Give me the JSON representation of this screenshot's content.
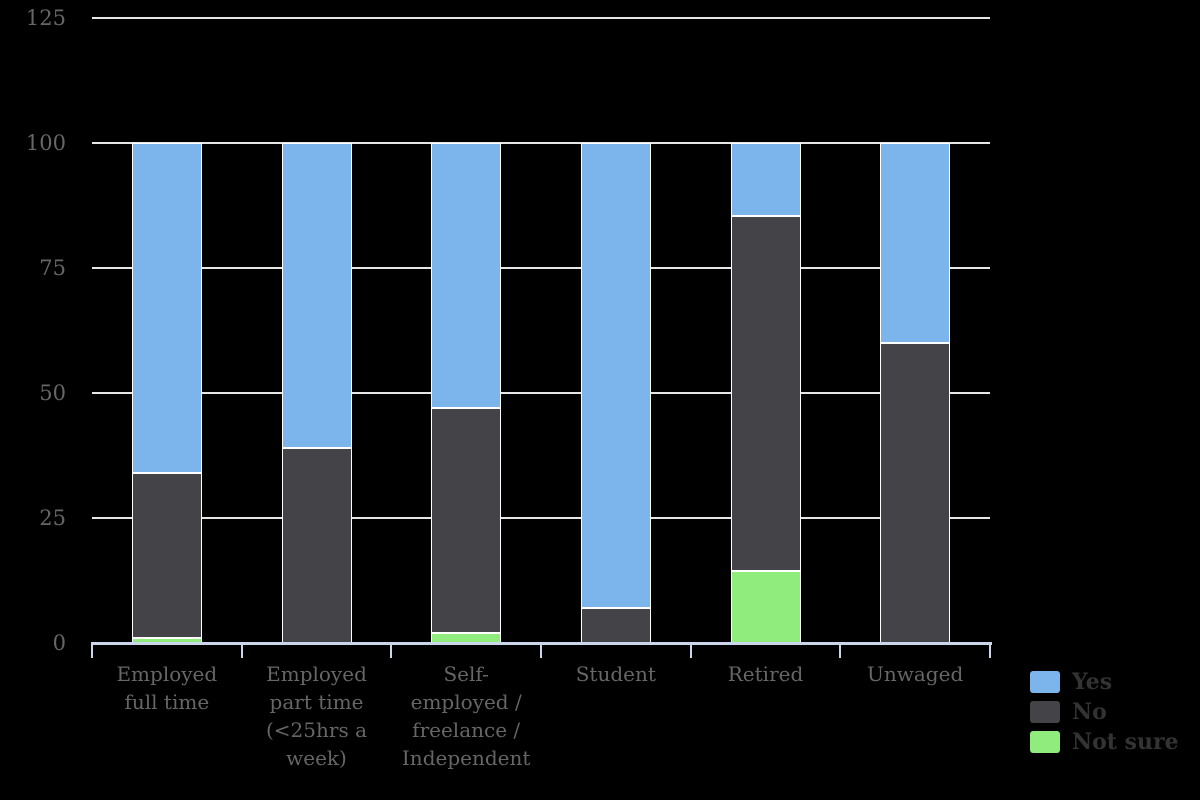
{
  "chart_data": {
    "type": "bar",
    "stacked": true,
    "orientation": "vertical-columns",
    "title": "",
    "xlabel": "",
    "ylabel": "",
    "categories": [
      "Employed full time",
      "Employed part time (<25hrs a week)",
      "Self-employed / freelance / Independent",
      "Student",
      "Retired",
      "Unwaged"
    ],
    "categories_wrapped": [
      [
        "Employed",
        "full time"
      ],
      [
        "Employed",
        "part time",
        "(<25hrs a",
        "week)"
      ],
      [
        "Self-",
        "employed /",
        "freelance /",
        "Independent"
      ],
      [
        "Student"
      ],
      [
        "Retired"
      ],
      [
        "Unwaged"
      ]
    ],
    "series": [
      {
        "name": "Yes",
        "color": "#7cb5ec",
        "values": [
          66,
          61,
          53,
          93,
          14.5,
          40
        ]
      },
      {
        "name": "No",
        "color": "#434348",
        "values": [
          33,
          39,
          45,
          7,
          71,
          60
        ]
      },
      {
        "name": "Not sure",
        "color": "#90ed7d",
        "values": [
          1,
          0,
          2,
          0,
          14.5,
          0
        ]
      }
    ],
    "stack_order_bottom_to_top": [
      "Not sure",
      "No",
      "Yes"
    ],
    "ylim": [
      0,
      125
    ],
    "yticks": [
      0,
      25,
      50,
      75,
      100,
      125
    ],
    "grid": true,
    "legend_position": "bottom-right"
  },
  "colors": {
    "background": "#000000",
    "grid": "#e6e6e6",
    "axis_line": "#ccd6eb",
    "tick": "#ccd6eb",
    "axis_label": "#666666",
    "legend_text": "#333333",
    "bar_border": "#ffffff"
  }
}
